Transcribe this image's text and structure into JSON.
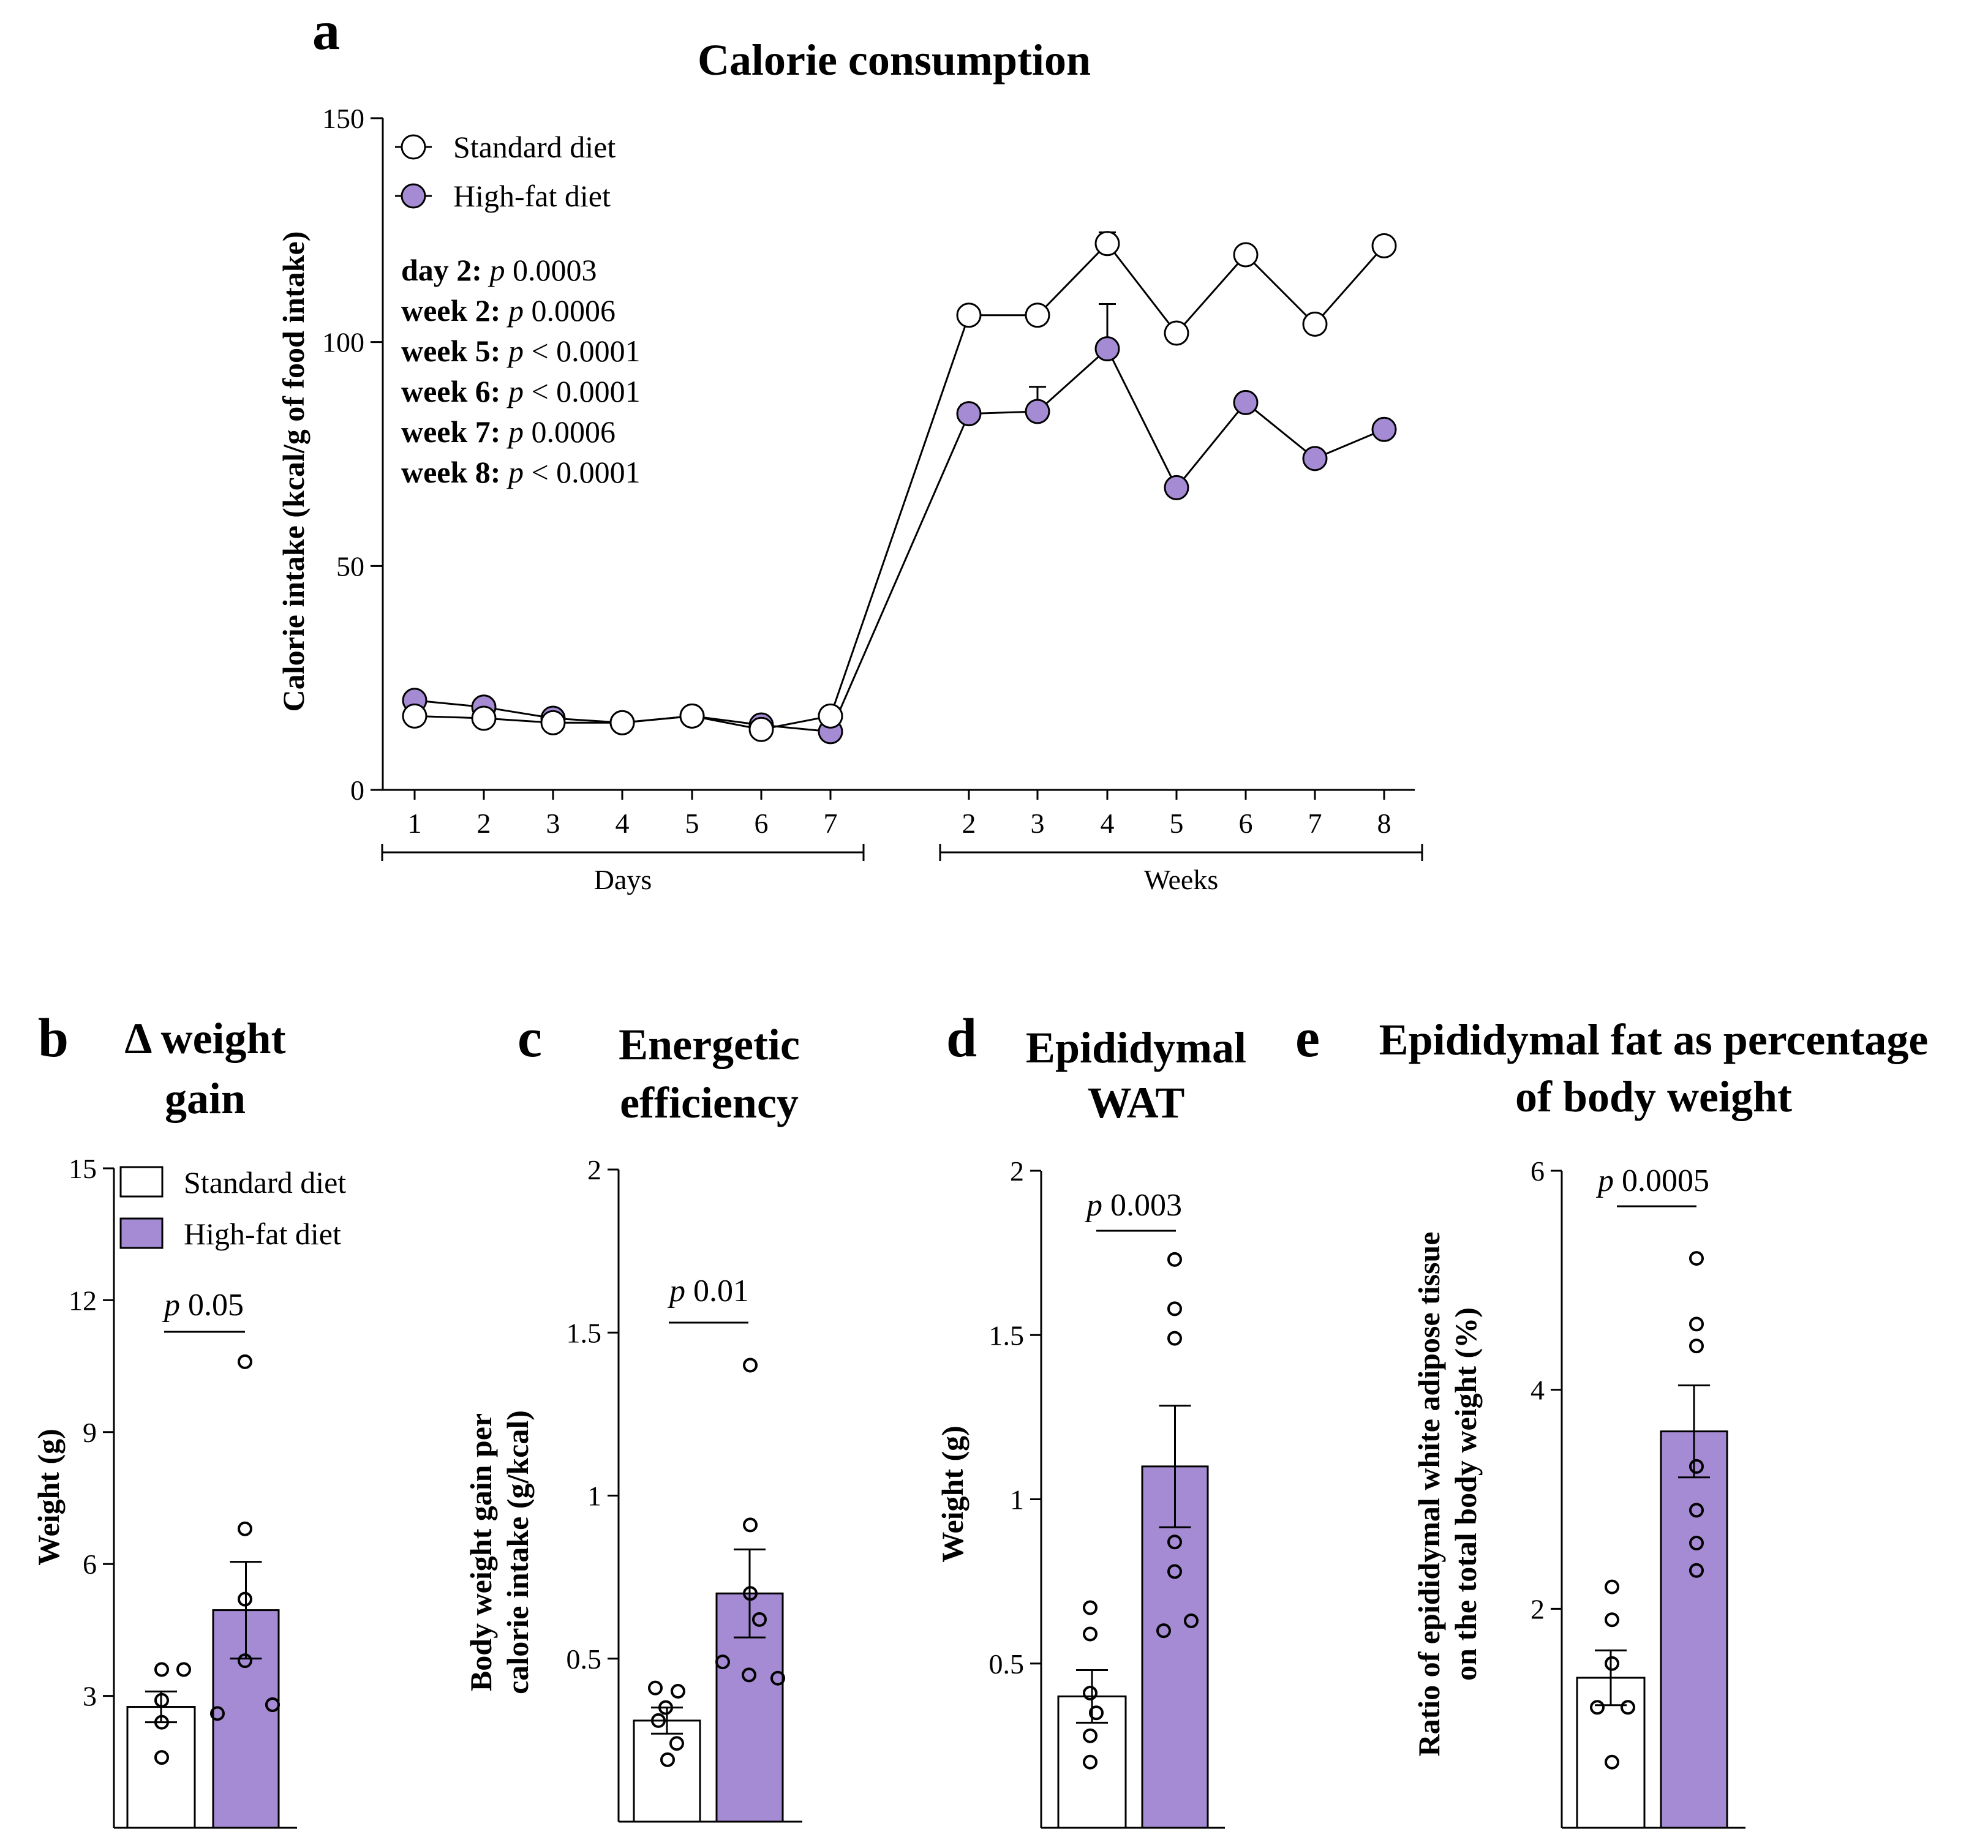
{
  "colors": {
    "standard": "#ffffff",
    "highfat": "#a58bd3",
    "stroke": "#000000"
  },
  "legend": {
    "standard": "Standard diet",
    "highfat": "High-fat diet"
  },
  "chart_data": [
    {
      "panel": "a",
      "type": "line",
      "title": "Calorie consumption",
      "ylabel": "Calorie intake (kcal/g of food intake)",
      "ylim": [
        0,
        150
      ],
      "yticks": [
        0,
        50,
        100,
        150
      ],
      "categories": [
        "1",
        "2",
        "3",
        "4",
        "5",
        "6",
        "7",
        "2",
        "3",
        "4",
        "5",
        "6",
        "7",
        "8"
      ],
      "groups": [
        "Days",
        "Weeks"
      ],
      "series": [
        {
          "name": "Standard diet",
          "values": [
            16.5,
            16,
            15,
            15,
            16.5,
            13.5,
            16.5,
            106,
            106,
            122,
            102,
            119.5,
            104,
            121.5
          ],
          "err": [
            0,
            0,
            0,
            0,
            0,
            0,
            0,
            0,
            0,
            2.5,
            0,
            0,
            0,
            0
          ]
        },
        {
          "name": "High-fat diet",
          "values": [
            20,
            18.5,
            16,
            15,
            16.5,
            14.5,
            13,
            84,
            84.5,
            98.5,
            67.5,
            86.5,
            74,
            80.5
          ],
          "err": [
            0,
            0,
            0,
            0,
            0,
            0,
            0,
            2,
            5.5,
            10,
            0,
            0,
            0,
            1.5
          ]
        }
      ],
      "annotations": [
        {
          "label": "day 2:",
          "p": "p",
          "value": "0.0003"
        },
        {
          "label": "week 2:",
          "p": "p",
          "value": "0.0006"
        },
        {
          "label": "week 5:",
          "p": "p",
          "value": "< 0.0001"
        },
        {
          "label": "week 6:",
          "p": "p",
          "value": "< 0.0001"
        },
        {
          "label": "week 7:",
          "p": "p",
          "value": "0.0006"
        },
        {
          "label": "week 8:",
          "p": "p",
          "value": "< 0.0001"
        }
      ]
    },
    {
      "panel": "b",
      "type": "bar",
      "title": [
        "Δ weight",
        "gain"
      ],
      "ylabel": [
        "Weight (g)"
      ],
      "ylim": [
        0,
        15
      ],
      "yticks": [
        3,
        6,
        9,
        12,
        15
      ],
      "categories": [
        "Standard diet",
        "High-fat diet"
      ],
      "values": [
        2.75,
        4.95
      ],
      "err": [
        0.35,
        1.1
      ],
      "points": [
        [
          3.6,
          3.6,
          2.9,
          2.4,
          1.6
        ],
        [
          10.6,
          6.8,
          5.2,
          3.8,
          2.8,
          2.8,
          2.6
        ]
      ],
      "pvalue": "0.05"
    },
    {
      "panel": "c",
      "type": "bar",
      "title": [
        "Energetic",
        "efficiency"
      ],
      "ylabel": [
        "Body weight gain per",
        "calorie intake (g/kcal)"
      ],
      "ylim": [
        0,
        2.0
      ],
      "yticks": [
        0.5,
        1.0,
        1.5,
        2.0
      ],
      "categories": [
        "Standard diet",
        "High-fat diet"
      ],
      "values": [
        0.31,
        0.7
      ],
      "err": [
        0.04,
        0.135
      ],
      "points": [
        [
          0.41,
          0.4,
          0.35,
          0.31,
          0.24,
          0.19
        ],
        [
          1.4,
          0.91,
          0.7,
          0.62,
          0.49,
          0.45,
          0.44
        ]
      ],
      "pvalue": "0.01"
    },
    {
      "panel": "d",
      "type": "bar",
      "title": [
        "Epididymal",
        "WAT"
      ],
      "ylabel": [
        "Weight (g)"
      ],
      "ylim": [
        0,
        2.0
      ],
      "yticks": [
        0.5,
        1.0,
        1.5,
        2.0
      ],
      "categories": [
        "Standard diet",
        "High-fat diet"
      ],
      "values": [
        0.4,
        1.1
      ],
      "err": [
        0.08,
        0.185
      ],
      "points": [
        [
          0.67,
          0.59,
          0.41,
          0.35,
          0.28,
          0.2
        ],
        [
          1.73,
          1.58,
          1.49,
          0.87,
          0.78,
          0.63,
          0.6
        ]
      ],
      "pvalue": "0.003"
    },
    {
      "panel": "e",
      "type": "bar",
      "title": [
        "Epididymal fat as percentage",
        "of body weight"
      ],
      "ylabel": [
        "Ratio of epididymal white adipose tissue",
        "on the total body weight (%)"
      ],
      "ylim": [
        0,
        6
      ],
      "yticks": [
        2,
        4,
        6
      ],
      "categories": [
        "Standard diet",
        "High-fat diet"
      ],
      "values": [
        1.37,
        3.62
      ],
      "err": [
        0.25,
        0.42
      ],
      "points": [
        [
          2.2,
          1.9,
          1.5,
          1.1,
          1.1,
          0.6
        ],
        [
          5.2,
          4.6,
          4.4,
          3.3,
          2.9,
          2.6,
          2.35
        ]
      ],
      "pvalue": "0.0005"
    }
  ],
  "panels": {
    "a": "a",
    "b": "b",
    "c": "c",
    "d": "d",
    "e": "e"
  },
  "p_label": "p"
}
